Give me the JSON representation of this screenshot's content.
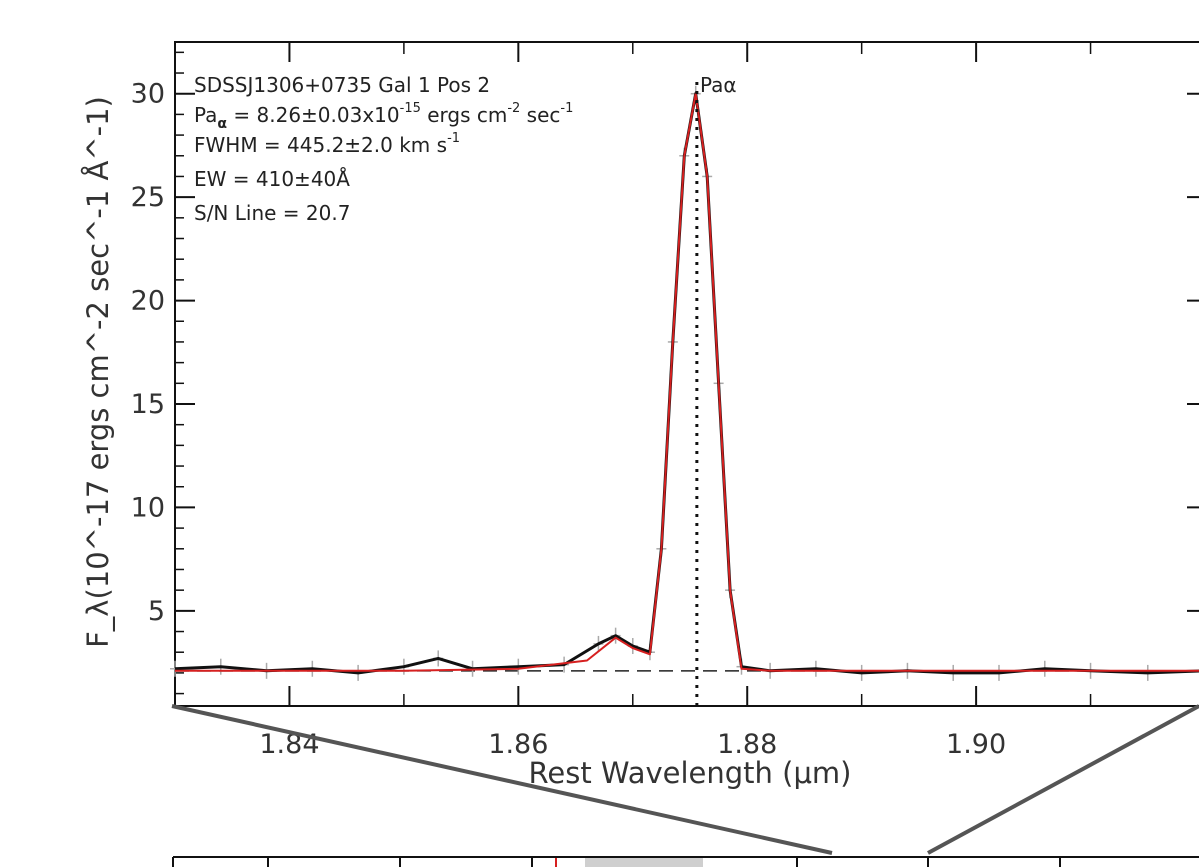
{
  "chart_data": {
    "type": "line",
    "xlabel": "Rest Wavelength (μm)",
    "ylabel": "F_λ(10^-17 ergs cm^-2 sec^-1 Å^-1)",
    "xlim": [
      1.83,
      1.92
    ],
    "ylim": [
      0.4,
      32.5
    ],
    "x_ticks": [
      "1.84",
      "1.86",
      "1.88",
      "1.90"
    ],
    "y_ticks": [
      "5",
      "10",
      "15",
      "20",
      "25",
      "30"
    ],
    "grid": false,
    "annotations": {
      "line1": "SDSSJ1306+0735 Gal 1 Pos 2",
      "line2": "Pa",
      "line2_sub": "α",
      "line2_rest": " = 8.26±0.03x10",
      "line2_sup": "-15",
      "line2_units": " ergs cm",
      "line2_sup2": "-2",
      "line2_units2": " sec",
      "line2_sup3": "-1",
      "line3": "FWHM = 445.2±2.0 km s",
      "line3_sup": "-1",
      "line4": "EW = 410±40Å",
      "line5": "S/N Line = 20.7",
      "line_label": "Paα",
      "line_center": 1.8756
    },
    "continuum": 2.1,
    "series": [
      {
        "color": "#111111",
        "x": [
          1.83,
          1.834,
          1.838,
          1.842,
          1.846,
          1.85,
          1.853,
          1.856,
          1.86,
          1.864,
          1.867,
          1.8685,
          1.87,
          1.8715,
          1.8725,
          1.8735,
          1.8745,
          1.8755,
          1.8765,
          1.8775,
          1.8785,
          1.8795,
          1.882,
          1.886,
          1.89,
          1.894,
          1.898,
          1.902,
          1.906,
          1.91,
          1.915,
          1.92
        ],
        "values": [
          2.2,
          2.3,
          2.1,
          2.2,
          2.0,
          2.3,
          2.7,
          2.2,
          2.3,
          2.4,
          3.4,
          3.8,
          3.3,
          3.0,
          8.0,
          18.0,
          27.0,
          30.0,
          26.0,
          16.0,
          6.0,
          2.3,
          2.1,
          2.2,
          2.0,
          2.1,
          2.0,
          2.0,
          2.2,
          2.1,
          2.0,
          2.1
        ]
      },
      {
        "color": "#d62020",
        "x": [
          1.83,
          1.84,
          1.85,
          1.86,
          1.866,
          1.8685,
          1.87,
          1.8715,
          1.8725,
          1.8735,
          1.8745,
          1.8755,
          1.8765,
          1.8775,
          1.8785,
          1.8795,
          1.882,
          1.89,
          1.9,
          1.91,
          1.92
        ],
        "values": [
          2.1,
          2.1,
          2.1,
          2.2,
          2.6,
          3.7,
          3.2,
          2.9,
          8.0,
          18.0,
          27.0,
          30.0,
          26.0,
          16.0,
          6.0,
          2.2,
          2.1,
          2.1,
          2.1,
          2.1,
          2.1
        ]
      }
    ],
    "bottom_panel_ticks_visible": true
  }
}
